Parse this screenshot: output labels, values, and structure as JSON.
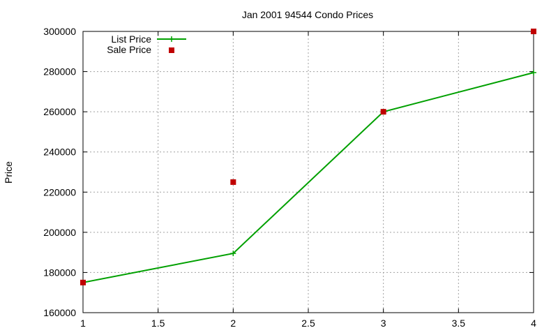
{
  "chart_data": {
    "type": "line",
    "title": "Jan 2001 94544 Condo Prices",
    "xlabel": "",
    "ylabel": "Price",
    "xlim": [
      1,
      4
    ],
    "ylim": [
      160000,
      300000
    ],
    "xticks": [
      "1",
      "1.5",
      "2",
      "2.5",
      "3",
      "3.5",
      "4"
    ],
    "yticks": [
      "160000",
      "180000",
      "200000",
      "220000",
      "240000",
      "260000",
      "280000",
      "300000"
    ],
    "grid": true,
    "legend_position": "top-left",
    "series": [
      {
        "name": "List Price",
        "style": "linespoints",
        "marker": "plus",
        "color": "#00a000",
        "x": [
          1,
          2,
          3,
          4
        ],
        "y": [
          175000,
          189500,
          260000,
          279500
        ]
      },
      {
        "name": "Sale Price",
        "style": "points",
        "marker": "square",
        "color": "#c00000",
        "x": [
          1,
          2,
          3,
          4
        ],
        "y": [
          175000,
          225000,
          260000,
          300000
        ]
      }
    ]
  }
}
